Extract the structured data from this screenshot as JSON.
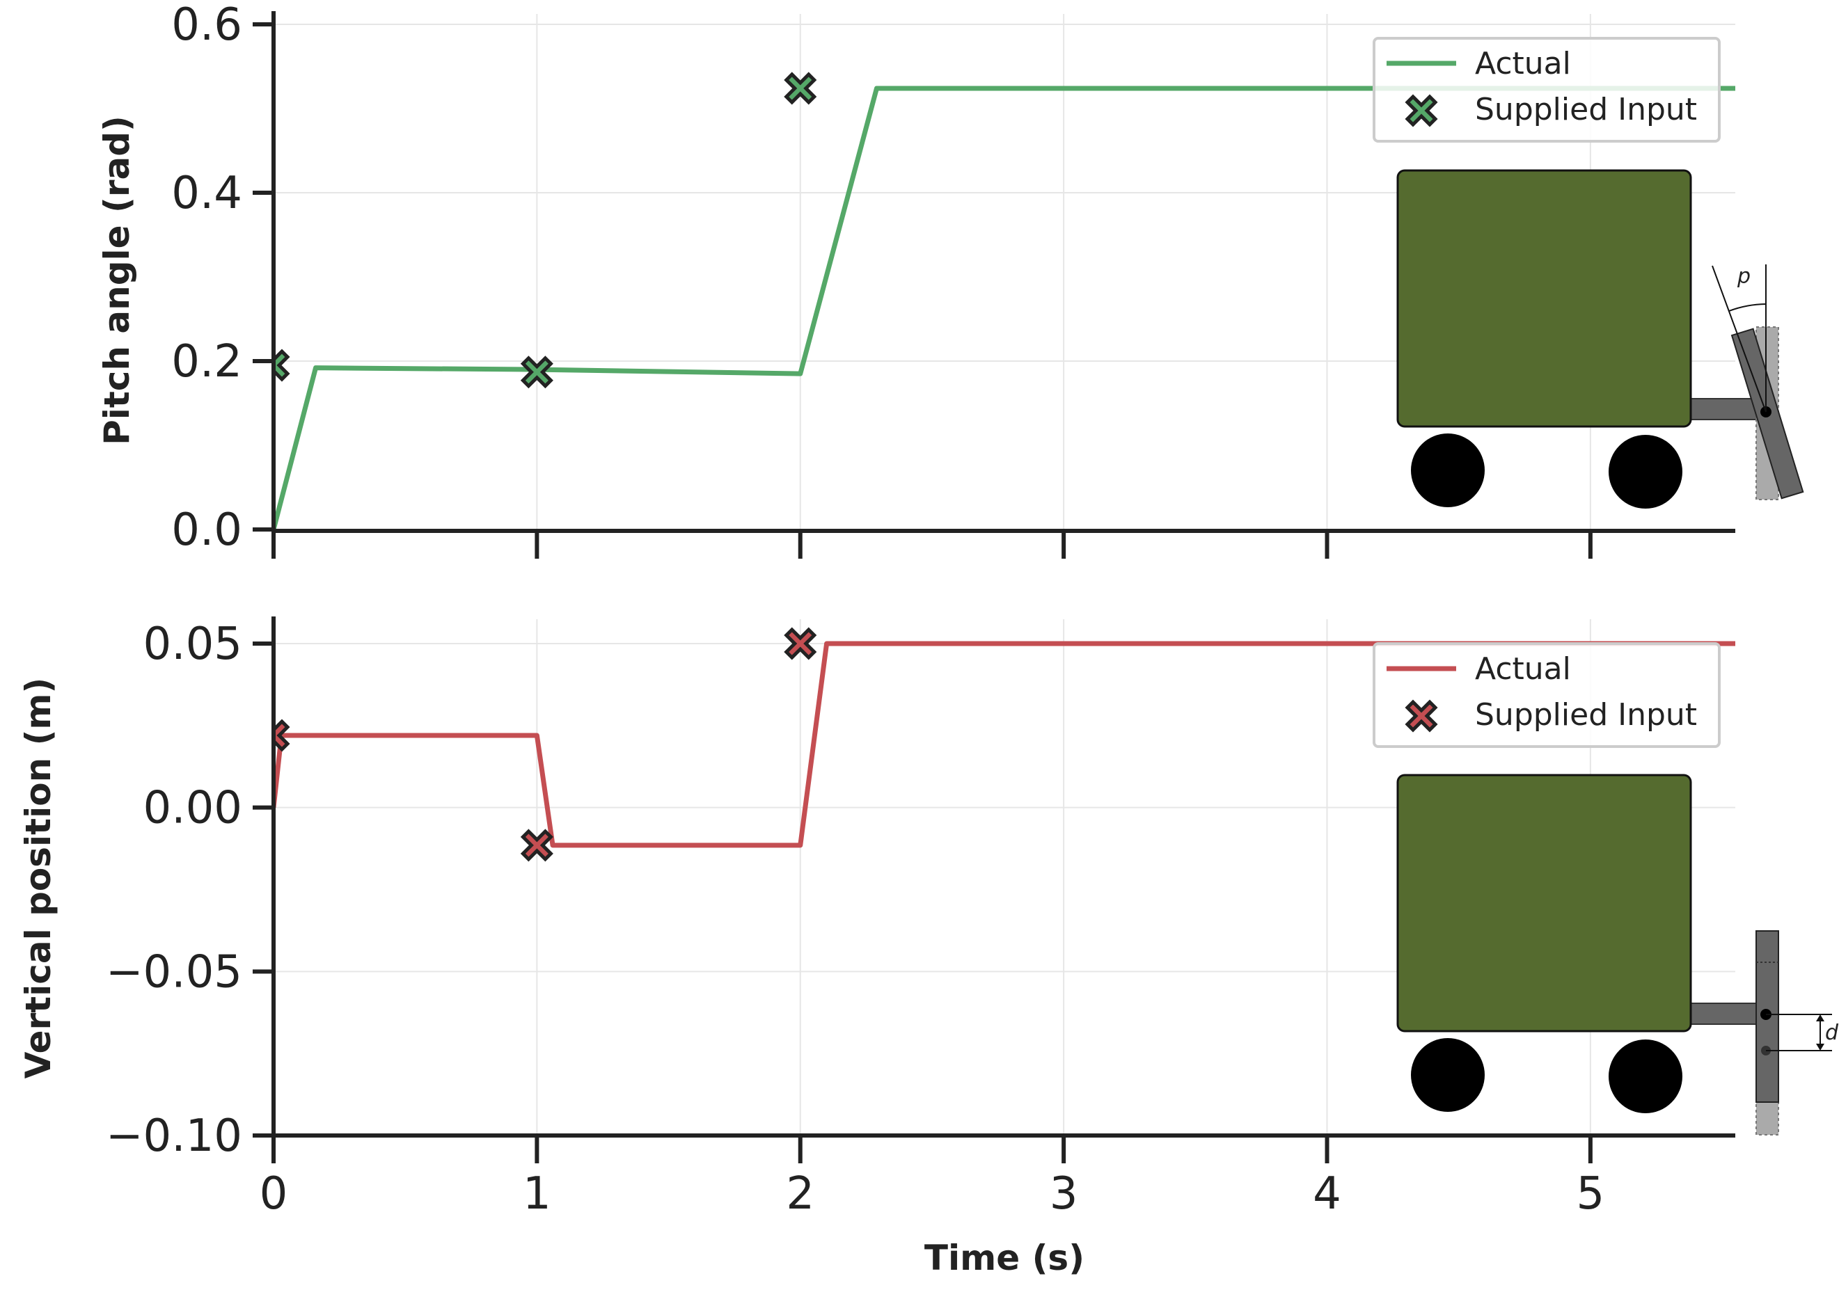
{
  "figure": {
    "xlabel": "Time (s)",
    "colors": {
      "pitch": "#55a868",
      "vertical": "#c44e52",
      "axis": "#222222",
      "grid": "#e6e6e6",
      "vehicle_body": "#556b2f",
      "arm": "#666666",
      "ghost": "#aaaaaa"
    },
    "diagram_labels": {
      "pitch_symbol": "p",
      "offset_symbol": "d"
    }
  },
  "chart_data": [
    {
      "type": "line",
      "title": "",
      "xlabel": "",
      "ylabel": "Pitch angle (rad)",
      "xlim": [
        0,
        5.55
      ],
      "ylim": [
        0,
        0.63
      ],
      "x_ticks": [
        0,
        1,
        2,
        3,
        4,
        5
      ],
      "x_tick_labels": [
        "",
        "",
        "",
        "",
        "",
        ""
      ],
      "y_ticks": [
        0.0,
        0.2,
        0.4,
        0.6
      ],
      "y_tick_labels": [
        "0.0",
        "0.2",
        "0.4",
        "0.6"
      ],
      "grid": true,
      "legend_position": "top-right",
      "series": [
        {
          "name": "Actual",
          "kind": "line",
          "x": [
            0,
            0.16,
            1.0,
            2.0,
            2.29,
            5.55
          ],
          "y": [
            0,
            0.192,
            0.19,
            0.185,
            0.524,
            0.524
          ]
        },
        {
          "name": "Supplied Input",
          "kind": "marker",
          "x": [
            0,
            1,
            2
          ],
          "y": [
            0.195,
            0.187,
            0.524
          ]
        }
      ]
    },
    {
      "type": "line",
      "title": "",
      "xlabel": "Time (s)",
      "ylabel": "Vertical position (m)",
      "xlim": [
        0,
        5.55
      ],
      "ylim": [
        -0.1,
        0.055
      ],
      "x_ticks": [
        0,
        1,
        2,
        3,
        4,
        5
      ],
      "x_tick_labels": [
        "0",
        "1",
        "2",
        "3",
        "4",
        "5"
      ],
      "y_ticks": [
        -0.1,
        -0.05,
        0.0,
        0.05
      ],
      "y_tick_labels": [
        "−0.10",
        "−0.05",
        "0.00",
        "0.05"
      ],
      "grid": true,
      "legend_position": "top-right",
      "series": [
        {
          "name": "Actual",
          "kind": "line",
          "x": [
            0,
            0.03,
            1.0,
            1.06,
            2.0,
            2.1,
            5.55
          ],
          "y": [
            0,
            0.022,
            0.022,
            -0.0115,
            -0.0115,
            0.05,
            0.05
          ]
        },
        {
          "name": "Supplied Input",
          "kind": "marker",
          "x": [
            0,
            1,
            2
          ],
          "y": [
            0.022,
            -0.0115,
            0.05
          ]
        }
      ]
    }
  ]
}
